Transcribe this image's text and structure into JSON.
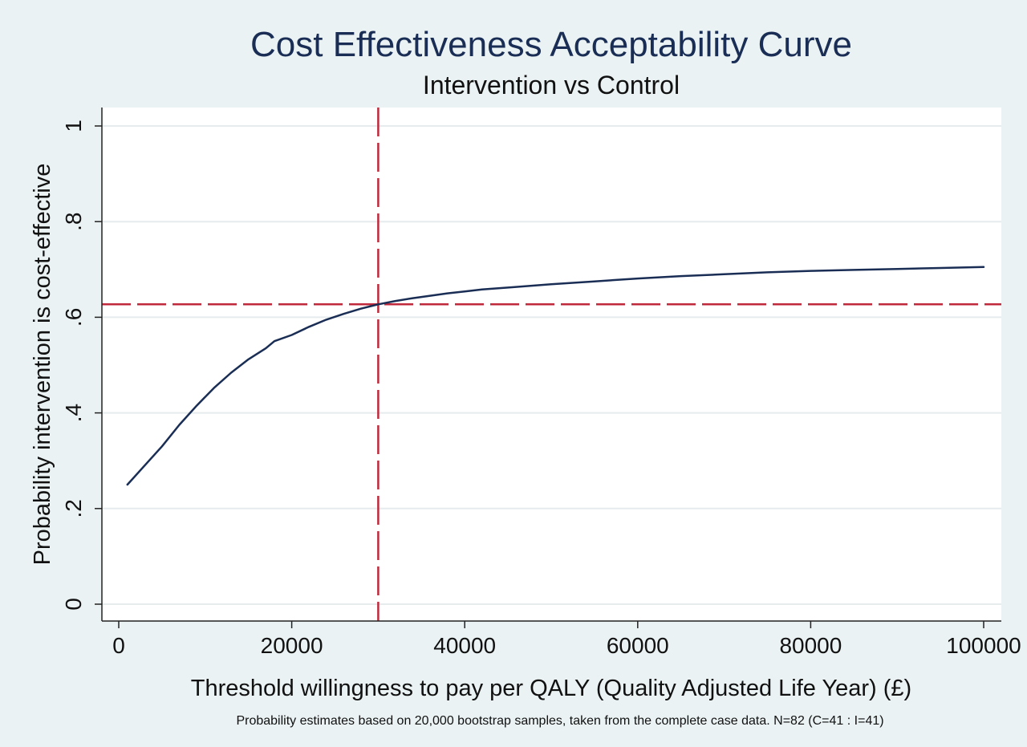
{
  "chart_data": {
    "type": "line",
    "title": "Cost Effectiveness Acceptability Curve",
    "subtitle": "Intervention vs Control",
    "xlabel": "Threshold willingness to pay per QALY (Quality Adjusted Life Year) (£)",
    "ylabel": "Probability intervention is cost-effective",
    "note": "Probability estimates based on 20,000 bootstrap samples, taken from the complete case data. N=82 (C=41 : I=41)",
    "xlim": [
      0,
      100000
    ],
    "ylim": [
      0,
      1
    ],
    "x_ticks": [
      0,
      20000,
      40000,
      60000,
      80000,
      100000
    ],
    "x_tick_labels": [
      "0",
      "20000",
      "40000",
      "60000",
      "80000",
      "100000"
    ],
    "y_ticks": [
      0,
      0.2,
      0.4,
      0.6,
      0.8,
      1
    ],
    "y_tick_labels": [
      "0",
      ".2",
      ".4",
      ".6",
      ".8",
      "1"
    ],
    "grid": true,
    "series": [
      {
        "color": "#1a2e55",
        "x": [
          1000,
          3000,
          5000,
          7000,
          9000,
          11000,
          13000,
          15000,
          17000,
          18000,
          20000,
          22000,
          24000,
          26000,
          28000,
          30000,
          32000,
          34000,
          36000,
          38000,
          40000,
          42000,
          45000,
          50000,
          55000,
          60000,
          65000,
          70000,
          75000,
          80000,
          85000,
          90000,
          95000,
          100000
        ],
        "y": [
          0.25,
          0.29,
          0.33,
          0.375,
          0.415,
          0.452,
          0.484,
          0.512,
          0.535,
          0.55,
          0.563,
          0.58,
          0.595,
          0.607,
          0.618,
          0.627,
          0.634,
          0.64,
          0.645,
          0.65,
          0.654,
          0.658,
          0.662,
          0.669,
          0.675,
          0.681,
          0.686,
          0.69,
          0.694,
          0.697,
          0.699,
          0.701,
          0.703,
          0.705
        ]
      }
    ],
    "reference_lines": [
      {
        "axis": "x",
        "value": 30000,
        "color": "#c0283b",
        "style": "dashed"
      },
      {
        "axis": "y",
        "value": 0.627,
        "color": "#c0283b",
        "style": "dashed"
      }
    ]
  }
}
